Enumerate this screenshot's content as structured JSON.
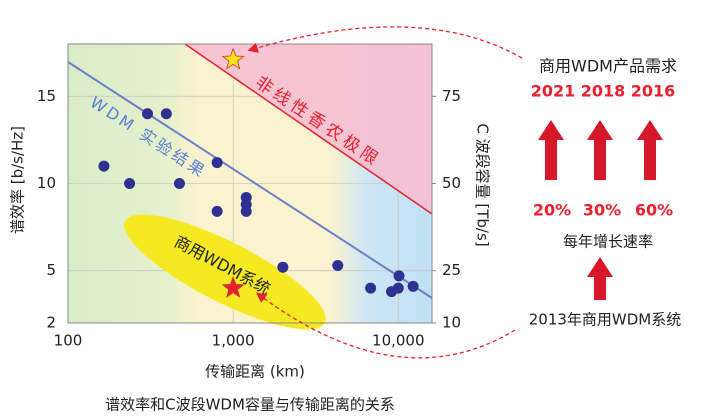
{
  "chart_data": {
    "type": "scatter",
    "caption": "谱效率和C波段WDM容量与传输距离的关系",
    "x_label": "传输距离 (km)",
    "y_label": "谱效率 [b/s/Hz]",
    "y2_label": "C 波段容量 [Tb/s]",
    "x_scale": "log",
    "xlim": [
      100,
      16000
    ],
    "xticks": [
      100,
      {
        "value": 1000,
        "label": "1,000"
      },
      {
        "value": 10000,
        "label": "10,000"
      }
    ],
    "ylim": [
      2,
      18
    ],
    "yticks": [
      2,
      5,
      10,
      15
    ],
    "y2lim": [
      10,
      90
    ],
    "y2ticks": [
      10,
      25,
      50,
      75
    ],
    "grid": true,
    "color": "#2e3192",
    "x": [
      165,
      236,
      303,
      394,
      473,
      800,
      800,
      1200,
      1200,
      1200,
      2000,
      4300,
      6800,
      9100,
      10100,
      10000,
      12300
    ],
    "values": [
      11.0,
      10.0,
      14.0,
      14.0,
      10.0,
      11.2,
      8.4,
      9.2,
      8.8,
      8.4,
      5.2,
      5.3,
      4.0,
      3.8,
      4.7,
      4.0,
      4.1
    ],
    "markers": [
      {
        "x": 1000,
        "y": 17.1,
        "color": "#f9e21a"
      },
      {
        "x": 1000,
        "y": 4.0,
        "color": "#e8202f"
      }
    ],
    "annotations": {
      "shannon_limit": "非线性香农极限",
      "wdm_experiment": "WDM 实验结果",
      "commercial_wdm": "商用WDM系统"
    }
  },
  "side_panel": {
    "title": "商用WDM产品需求",
    "years": [
      "2021",
      "2018",
      "2016"
    ],
    "rates": [
      "20%",
      "30%",
      "60%"
    ],
    "rate_label": "每年增长速率",
    "origin": "2013年商用WDM系统"
  }
}
